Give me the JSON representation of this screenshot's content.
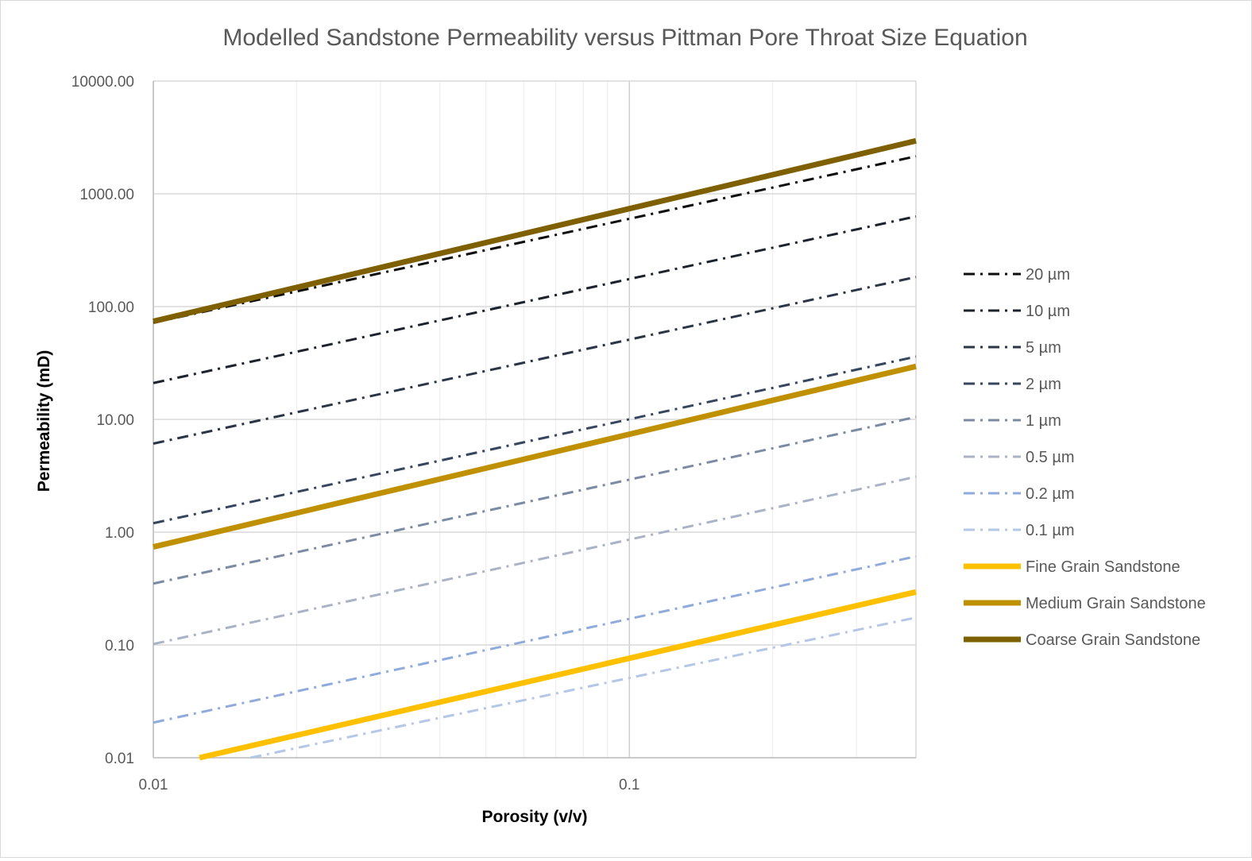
{
  "chart_data": {
    "type": "line",
    "title": "Modelled Sandstone Permeability versus Pittman Pore Throat Size Equation",
    "xlabel": "Porosity (v/v)",
    "ylabel": "Permeability (mD)",
    "x_scale": "log",
    "y_scale": "log",
    "xlim": [
      0.01,
      0.4
    ],
    "ylim": [
      0.01,
      10000
    ],
    "x_ticks": [
      {
        "value": 0.01,
        "label": "0.01"
      },
      {
        "value": 0.1,
        "label": "0.1"
      }
    ],
    "y_ticks": [
      {
        "value": 0.01,
        "label": "0.01"
      },
      {
        "value": 0.1,
        "label": "0.10"
      },
      {
        "value": 1,
        "label": "1.00"
      },
      {
        "value": 10,
        "label": "10.00"
      },
      {
        "value": 100,
        "label": "100.00"
      },
      {
        "value": 1000,
        "label": "1000.00"
      },
      {
        "value": 10000,
        "label": "10000.00"
      }
    ],
    "grid": true,
    "legend_position": "right",
    "series": [
      {
        "name": "20 µm",
        "style": "dash-dot",
        "color": "#0d0d0d",
        "width": 3,
        "x": [
          0.01,
          0.4
        ],
        "y": [
          72,
          2150
        ]
      },
      {
        "name": "10 µm",
        "style": "dash-dot",
        "color": "#1c232d",
        "width": 3,
        "x": [
          0.01,
          0.4
        ],
        "y": [
          21,
          630
        ]
      },
      {
        "name": "5 µm",
        "style": "dash-dot",
        "color": "#2a3546",
        "width": 3,
        "x": [
          0.01,
          0.4
        ],
        "y": [
          6.1,
          183
        ]
      },
      {
        "name": "2 µm",
        "style": "dash-dot",
        "color": "#36465e",
        "width": 3,
        "x": [
          0.01,
          0.4
        ],
        "y": [
          1.2,
          36
        ]
      },
      {
        "name": "1 µm",
        "style": "dash-dot",
        "color": "#7a8ba3",
        "width": 3,
        "x": [
          0.01,
          0.4
        ],
        "y": [
          0.35,
          10.5
        ]
      },
      {
        "name": "0.5 µm",
        "style": "dash-dot",
        "color": "#aab3c6",
        "width": 3,
        "x": [
          0.01,
          0.4
        ],
        "y": [
          0.102,
          3.1
        ]
      },
      {
        "name": "0.2 µm",
        "style": "dash-dot",
        "color": "#8faadc",
        "width": 3,
        "x": [
          0.01,
          0.4
        ],
        "y": [
          0.0205,
          0.61
        ]
      },
      {
        "name": "0.1 µm",
        "style": "dash-dot",
        "color": "#b4c7e7",
        "width": 3,
        "x": [
          0.016,
          0.4
        ],
        "y": [
          0.01,
          0.175
        ]
      },
      {
        "name": "Fine Grain Sandstone",
        "style": "solid",
        "color": "#ffc000",
        "width": 7,
        "x": [
          0.0125,
          0.4
        ],
        "y": [
          0.01,
          0.295
        ]
      },
      {
        "name": "Medium Grain Sandstone",
        "style": "solid",
        "color": "#bf9000",
        "width": 7,
        "x": [
          0.01,
          0.4
        ],
        "y": [
          0.74,
          29.5
        ]
      },
      {
        "name": "Coarse Grain Sandstone",
        "style": "solid",
        "color": "#7f6000",
        "width": 7,
        "x": [
          0.01,
          0.4
        ],
        "y": [
          74,
          2950
        ]
      }
    ]
  }
}
